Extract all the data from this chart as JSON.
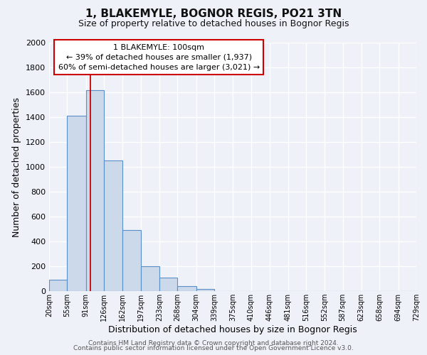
{
  "title": "1, BLAKEMYLE, BOGNOR REGIS, PO21 3TN",
  "subtitle": "Size of property relative to detached houses in Bognor Regis",
  "xlabel": "Distribution of detached houses by size in Bognor Regis",
  "ylabel": "Number of detached properties",
  "bar_color": "#ccd9ea",
  "bar_edge_color": "#5b8fc9",
  "background_color": "#eef2f8",
  "grid_color": "#ffffff",
  "red_line_x": 100,
  "annotation_line1": "1 BLAKEMYLE: 100sqm",
  "annotation_line2": "← 39% of detached houses are smaller (1,937)",
  "annotation_line3": "60% of semi-detached houses are larger (3,021) →",
  "footer1": "Contains HM Land Registry data © Crown copyright and database right 2024.",
  "footer2": "Contains public sector information licensed under the Open Government Licence v3.0.",
  "bin_edges": [
    20,
    55,
    91,
    126,
    162,
    197,
    233,
    268,
    304,
    339,
    375,
    410,
    446,
    481,
    516,
    552,
    587,
    623,
    658,
    694,
    729
  ],
  "bin_heights": [
    90,
    1410,
    1620,
    1050,
    490,
    200,
    110,
    40,
    20,
    0,
    0,
    0,
    0,
    0,
    0,
    0,
    0,
    0,
    0,
    0
  ],
  "ylim": [
    0,
    2000
  ],
  "yticks": [
    0,
    200,
    400,
    600,
    800,
    1000,
    1200,
    1400,
    1600,
    1800,
    2000
  ],
  "title_fontsize": 11,
  "subtitle_fontsize": 9,
  "xlabel_fontsize": 9,
  "ylabel_fontsize": 9,
  "ytick_fontsize": 8,
  "xtick_fontsize": 7,
  "annotation_fontsize": 8,
  "footer_fontsize": 6.5
}
